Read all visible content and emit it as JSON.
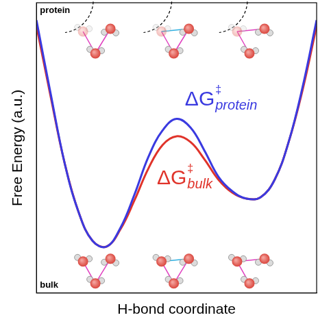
{
  "chart_data": {
    "type": "line",
    "x_label": "H-bond coordinate",
    "y_label": "Free Energy (a.u.)",
    "x": [
      0,
      0.5,
      1,
      1.5,
      2,
      2.5,
      3,
      3.5,
      4,
      4.5,
      5,
      5.5,
      6,
      6.5,
      7,
      7.5,
      8,
      8.5,
      9,
      9.5,
      10
    ],
    "series": [
      {
        "name": "protein",
        "color": "#3a3ae0",
        "values": [
          9.4,
          6.9,
          4.5,
          2.8,
          1.8,
          1.6,
          2.25,
          3.4,
          4.7,
          5.6,
          6.0,
          5.7,
          4.9,
          4.0,
          3.5,
          3.25,
          3.3,
          3.9,
          5.2,
          7.1,
          9.4
        ]
      },
      {
        "name": "bulk",
        "color": "#e0332a",
        "values": [
          9.2,
          6.8,
          4.5,
          2.8,
          1.8,
          1.6,
          2.2,
          3.2,
          4.3,
          5.1,
          5.4,
          5.2,
          4.6,
          3.9,
          3.45,
          3.25,
          3.3,
          3.9,
          5.2,
          7.0,
          9.2
        ]
      }
    ],
    "xlim": [
      0,
      10
    ],
    "ylim": [
      0,
      10
    ],
    "tick_labels": false,
    "grid": false,
    "legend": "none",
    "annotations": [
      {
        "text": "protein",
        "color": "#000000"
      },
      {
        "text": "bulk",
        "color": "#000000"
      },
      {
        "text": "ΔG",
        "superscript": "‡",
        "subscript": "protein",
        "color": "#3a3ae0"
      },
      {
        "text": "ΔG",
        "superscript": "‡",
        "subscript": "bulk",
        "color": "#e0332a"
      }
    ]
  }
}
